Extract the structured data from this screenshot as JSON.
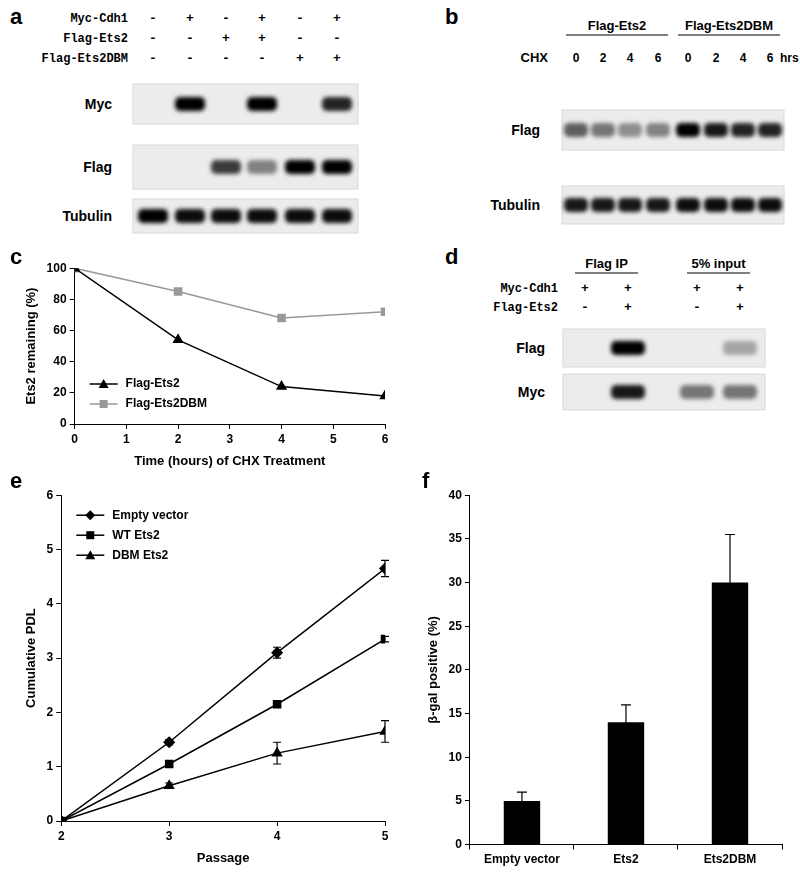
{
  "panel_labels": [
    "a",
    "b",
    "c",
    "d",
    "e",
    "f"
  ],
  "blots": [
    {
      "conditions": [
        {
          "name": "Myc-Cdh1",
          "marks": [
            "-",
            "+",
            "-",
            "+",
            "-",
            "+"
          ]
        },
        {
          "name": "Flag-Ets2",
          "marks": [
            "-",
            "-",
            "+",
            "+",
            "-",
            "-"
          ]
        },
        {
          "name": "Flag-Ets2DBM",
          "marks": [
            "-",
            "-",
            "-",
            "-",
            "+",
            "+"
          ]
        }
      ],
      "rows": [
        {
          "name": "Myc",
          "bands": [
            0,
            1,
            0,
            1,
            0,
            0.85
          ]
        },
        {
          "name": "Flag",
          "bands": [
            0,
            0,
            0.75,
            0.45,
            1,
            1
          ]
        },
        {
          "name": "Tubulin",
          "bands": [
            1,
            0.95,
            0.95,
            0.95,
            0.95,
            0.95
          ]
        }
      ]
    },
    {
      "groups": [
        {
          "text": "Flag-Ets2",
          "lanes": 4
        },
        {
          "text": "Flag-Ets2DBM",
          "lanes": 4
        }
      ],
      "lane_label": {
        "name": "CHX",
        "values": [
          0,
          2,
          4,
          6,
          0,
          2,
          4,
          6
        ],
        "unit": "hrs"
      },
      "rows": [
        {
          "name": "Flag",
          "bands": [
            0.6,
            0.5,
            0.4,
            0.45,
            1,
            0.9,
            0.85,
            0.85
          ]
        },
        {
          "name": "Tubulin",
          "bands": [
            0.9,
            0.9,
            0.9,
            0.9,
            0.95,
            0.95,
            0.95,
            0.95
          ]
        }
      ]
    },
    {
      "groups": [
        {
          "text": "Flag IP",
          "lanes": 2
        },
        {
          "text": "5% input",
          "lanes": 2
        }
      ],
      "conditions": [
        {
          "name": "Myc-Cdh1",
          "marks": [
            "+",
            "+",
            "+",
            "+"
          ]
        },
        {
          "name": "Flag-Ets2",
          "marks": [
            "-",
            "+",
            "-",
            "+"
          ]
        }
      ],
      "rows": [
        {
          "name": "Flag",
          "bands": [
            0,
            1,
            0,
            0.3
          ]
        },
        {
          "name": "Myc",
          "bands": [
            0,
            0.9,
            0.5,
            0.5
          ]
        }
      ]
    }
  ],
  "chart_data": [
    {
      "type": "line",
      "x_label": "Time (hours) of CHX Treatment",
      "y_label": "Ets2 remaining (%)",
      "xlim": [
        0,
        6
      ],
      "xticks": [
        0,
        1,
        2,
        3,
        4,
        5,
        6
      ],
      "ylim": [
        0,
        100
      ],
      "yticks": [
        0,
        20,
        40,
        60,
        80,
        100
      ],
      "grid": false,
      "legend": "lower left",
      "x": [
        0,
        2,
        4,
        6
      ],
      "series": [
        {
          "name": "Flag-Ets2",
          "color": "#000000",
          "marker": "triangle",
          "values": [
            100,
            54,
            24,
            18
          ]
        },
        {
          "name": "Flag-Ets2DBM",
          "color": "#999999",
          "marker": "square",
          "values": [
            100,
            85,
            68,
            72
          ]
        }
      ]
    },
    {
      "type": "line",
      "x_label": "Passage",
      "y_label": "Cumulative PDL",
      "xlim": [
        2,
        5
      ],
      "xticks": [
        2,
        3,
        4,
        5
      ],
      "ylim": [
        0,
        6
      ],
      "yticks": [
        0,
        1,
        2,
        3,
        4,
        5,
        6
      ],
      "grid": false,
      "legend": "upper left",
      "x": [
        2,
        3,
        4,
        5
      ],
      "series": [
        {
          "name": "Empty vector",
          "color": "#000000",
          "marker": "diamond",
          "values": [
            0,
            1.45,
            3.1,
            4.65
          ],
          "errors": [
            0,
            0.05,
            0.1,
            0.15
          ]
        },
        {
          "name": "WT Ets2",
          "color": "#000000",
          "marker": "square",
          "values": [
            0,
            1.05,
            2.15,
            3.35
          ],
          "errors": [
            0,
            0.05,
            0.05,
            0.05
          ]
        },
        {
          "name": "DBM Ets2",
          "color": "#000000",
          "marker": "triangle",
          "values": [
            0,
            0.65,
            1.25,
            1.65
          ],
          "errors": [
            0,
            0.05,
            0.2,
            0.2
          ]
        }
      ]
    },
    {
      "type": "bar",
      "y_label": "β-gal positive (%)",
      "categories": [
        "Empty vector",
        "Ets2",
        "Ets2DBM"
      ],
      "values": [
        5,
        14,
        30
      ],
      "errors": [
        1,
        2,
        5.5
      ],
      "color": "#000000",
      "ylim": [
        0,
        40
      ],
      "yticks": [
        0,
        5,
        10,
        15,
        20,
        25,
        30,
        35,
        40
      ],
      "grid": false
    }
  ]
}
